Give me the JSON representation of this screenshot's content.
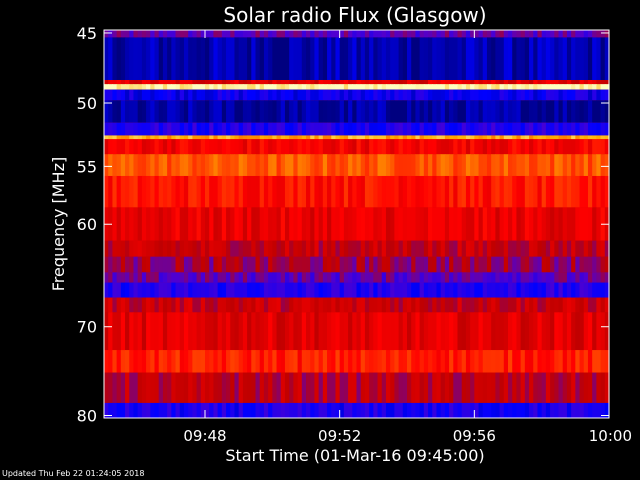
{
  "chart_data": {
    "type": "heatmap",
    "title": "Solar radio Flux (Glasgow)",
    "xlabel": "Start Time (01-Mar-16 09:45:00)",
    "ylabel": "Frequency [MHz]",
    "x_tick_labels": [
      "09:48",
      "09:52",
      "09:56",
      "10:00"
    ],
    "x_ticks_minutes_after_start": [
      3,
      7,
      11,
      15
    ],
    "x_range_minutes_after_start": [
      0,
      15
    ],
    "y_tick_labels": [
      "45",
      "50",
      "55",
      "60",
      "70",
      "80"
    ],
    "y_ticks": [
      45,
      50,
      55,
      60,
      70,
      80
    ],
    "y_range": [
      44.8,
      80.3
    ],
    "y_scale": "log",
    "bands": [
      {
        "from": 44.8,
        "to": 45.3,
        "level": 0.3
      },
      {
        "from": 45.3,
        "to": 48.3,
        "level": 0.05
      },
      {
        "from": 48.3,
        "to": 48.6,
        "level": 0.5
      },
      {
        "from": 48.6,
        "to": 49.0,
        "level": 1.0
      },
      {
        "from": 49.0,
        "to": 49.8,
        "level": 0.15
      },
      {
        "from": 49.8,
        "to": 51.5,
        "level": 0.03
      },
      {
        "from": 51.5,
        "to": 52.5,
        "level": 0.2
      },
      {
        "from": 52.5,
        "to": 52.8,
        "level": 0.85
      },
      {
        "from": 52.8,
        "to": 54.0,
        "level": 0.55
      },
      {
        "from": 54.0,
        "to": 55.8,
        "level": 0.72
      },
      {
        "from": 55.8,
        "to": 58.5,
        "level": 0.6
      },
      {
        "from": 58.5,
        "to": 61.5,
        "level": 0.52
      },
      {
        "from": 61.5,
        "to": 63.0,
        "level": 0.44
      },
      {
        "from": 63.0,
        "to": 64.5,
        "level": 0.38
      },
      {
        "from": 64.5,
        "to": 65.5,
        "level": 0.3
      },
      {
        "from": 65.5,
        "to": 67.0,
        "level": 0.2
      },
      {
        "from": 67.0,
        "to": 68.5,
        "level": 0.45
      },
      {
        "from": 68.5,
        "to": 72.5,
        "level": 0.5
      },
      {
        "from": 72.5,
        "to": 75.0,
        "level": 0.62
      },
      {
        "from": 75.0,
        "to": 78.5,
        "level": 0.42
      },
      {
        "from": 78.5,
        "to": 80.3,
        "level": 0.18
      }
    ],
    "colormap": [
      "#000080",
      "#0000ff",
      "#5000d0",
      "#c00000",
      "#ff0000",
      "#ff5000",
      "#ffb000",
      "#ffffc0"
    ],
    "axes_color": "#ffffff",
    "background_color": "#000000"
  },
  "footer": {
    "updated_text": "Updated Thu Feb 22 01:24:05 2018"
  }
}
